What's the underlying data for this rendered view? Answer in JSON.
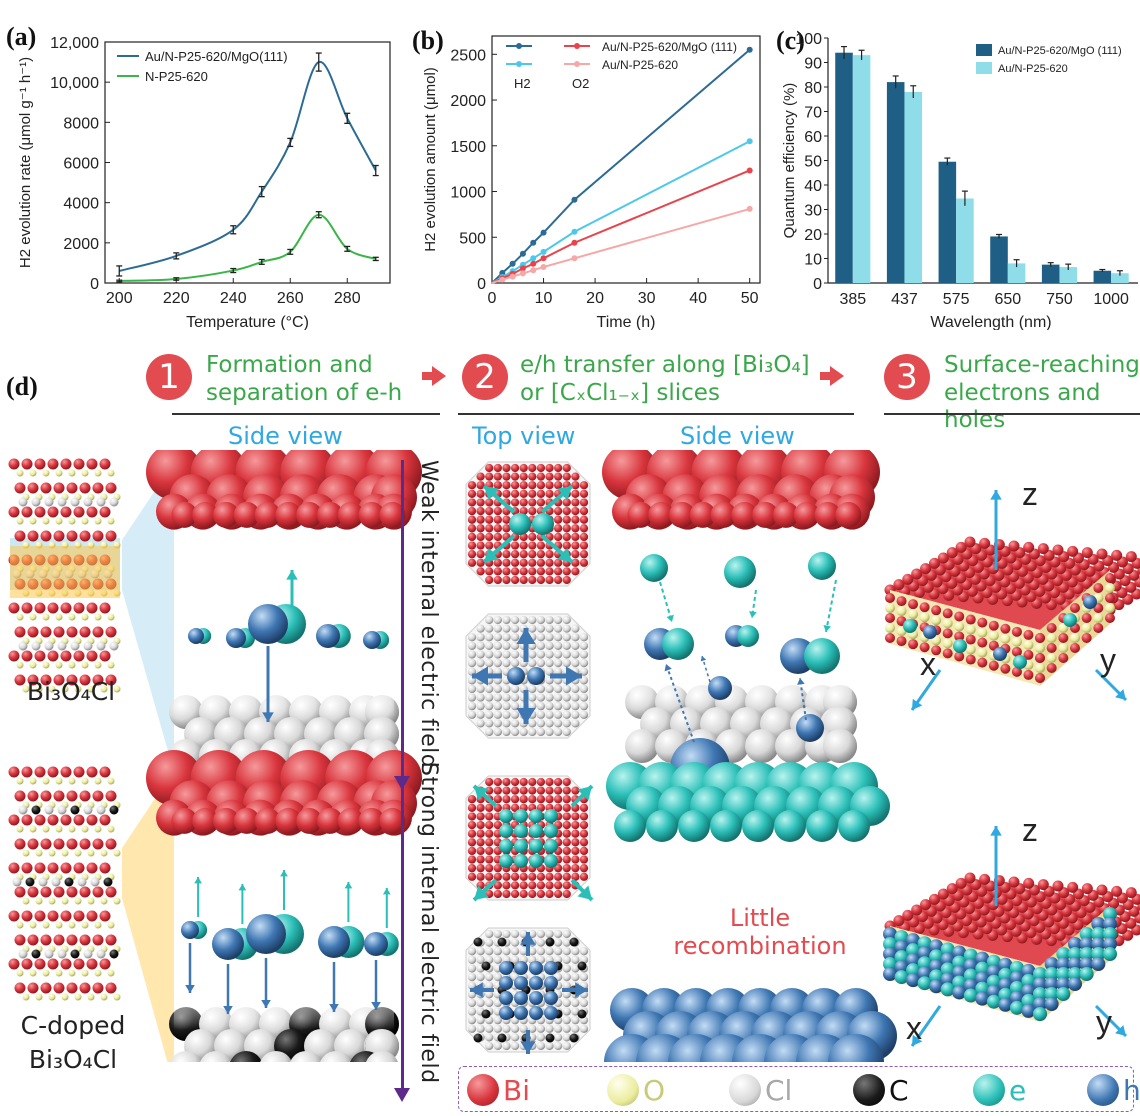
{
  "panel_labels": {
    "a": "(a)",
    "b": "(b)",
    "c": "(c)",
    "d": "(d)"
  },
  "colors": {
    "au_blue": "#2b6b94",
    "green": "#3bb54a",
    "h2_light": "#4cc8ea",
    "o2_dark": "#e8444b",
    "o2_light": "#f6a7a7",
    "bar_dark": "#1f5f85",
    "bar_light": "#8edde8",
    "bi": "#d9353d",
    "o": "#ecec9e",
    "cl": "#d8d8d8",
    "c": "#111111",
    "e": "#2bbfb8",
    "h": "#3f77b3",
    "step_red": "#e24b4f",
    "step_green": "#3aa84a",
    "view_blue": "#30a8e0"
  },
  "chart_data": [
    {
      "id": "a",
      "type": "line",
      "xlabel": "Temperature (°C)",
      "ylabel": "H2 evolution rate (μmol g⁻¹ h⁻¹)",
      "xlim": [
        195,
        295
      ],
      "ylim": [
        0,
        12000
      ],
      "xticks": [
        200,
        220,
        240,
        260,
        280
      ],
      "yticks": [
        0,
        2000,
        4000,
        6000,
        8000,
        10000,
        12000
      ],
      "ytick_labels": [
        "0",
        "2000",
        "4000",
        "6000",
        "8000",
        "10,000",
        "12,000"
      ],
      "legend_position": "top-left",
      "series": [
        {
          "name": "Au/N-P25-620/MgO(111)",
          "x": [
            200,
            220,
            240,
            250,
            260,
            270,
            280,
            290
          ],
          "y": [
            600,
            1350,
            2650,
            4550,
            7000,
            11000,
            8200,
            5600
          ],
          "err": [
            250,
            150,
            200,
            250,
            200,
            450,
            250,
            250
          ]
        },
        {
          "name": "N-P25-620",
          "x": [
            200,
            220,
            240,
            250,
            260,
            270,
            280,
            290
          ],
          "y": [
            100,
            200,
            620,
            1050,
            1550,
            3400,
            1700,
            1200
          ],
          "err": [
            40,
            60,
            100,
            120,
            120,
            150,
            120,
            80
          ]
        }
      ]
    },
    {
      "id": "b",
      "type": "line",
      "xlabel": "Time (h)",
      "ylabel": "H2 evolution amount (μmol)",
      "xlim": [
        0,
        52
      ],
      "ylim": [
        0,
        2700
      ],
      "xticks": [
        0,
        10,
        20,
        30,
        40,
        50
      ],
      "yticks": [
        0,
        500,
        1000,
        1500,
        2000,
        2500
      ],
      "legend_position": "top-left",
      "legend_rows": [
        "Au/N-P25-620/MgO (111)",
        "Au/N-P25-620"
      ],
      "legend_cols": [
        "H2",
        "O2"
      ],
      "series": [
        {
          "name": "Au/N-P25-620/MgO (111) H2",
          "x": [
            0,
            2,
            4,
            6,
            8,
            10,
            16,
            50
          ],
          "y": [
            0,
            110,
            210,
            320,
            440,
            550,
            910,
            2550
          ]
        },
        {
          "name": "Au/N-P25-620 H2",
          "x": [
            0,
            2,
            4,
            6,
            8,
            10,
            16,
            50
          ],
          "y": [
            0,
            65,
            130,
            200,
            270,
            340,
            560,
            1550
          ]
        },
        {
          "name": "Au/N-P25-620/MgO (111) O2",
          "x": [
            0,
            2,
            4,
            6,
            8,
            10,
            16,
            50
          ],
          "y": [
            0,
            50,
            100,
            160,
            210,
            270,
            440,
            1230
          ]
        },
        {
          "name": "Au/N-P25-620 O2",
          "x": [
            0,
            2,
            4,
            6,
            8,
            10,
            16,
            50
          ],
          "y": [
            0,
            35,
            70,
            105,
            140,
            175,
            270,
            810
          ]
        }
      ]
    },
    {
      "id": "c",
      "type": "bar",
      "xlabel": "Wavelength (nm)",
      "ylabel": "Quantum efficiency (%)",
      "ylim": [
        0,
        100
      ],
      "yticks": [
        0,
        10,
        20,
        30,
        40,
        50,
        60,
        70,
        80,
        90,
        100
      ],
      "categories": [
        "385",
        "437",
        "575",
        "650",
        "750",
        "1000"
      ],
      "legend_position": "top-right",
      "series": [
        {
          "name": "Au/N-P25-620/MgO (111)",
          "values": [
            94,
            82,
            49.5,
            19,
            7.5,
            5
          ],
          "err": [
            2.5,
            2.5,
            1.5,
            0.8,
            0.8,
            0.5
          ]
        },
        {
          "name": "Au/N-P25-620",
          "values": [
            93,
            78,
            34.5,
            8,
            6.5,
            4
          ],
          "err": [
            2,
            2.5,
            3,
            1.5,
            1.2,
            1
          ]
        }
      ]
    }
  ],
  "schematic": {
    "steps": [
      {
        "num": "1",
        "line1": "Formation and",
        "line2": "separation of e-h"
      },
      {
        "num": "2",
        "line1": "e/h transfer along [Bi₃O₄]",
        "line2": "or [CₓCl₁₋ₓ] slices"
      },
      {
        "num": "3",
        "line1": "Surface-reaching",
        "line2": "electrons and holes"
      }
    ],
    "views": {
      "side1": "Side view",
      "top": "Top view",
      "side2": "Side view"
    },
    "field_weak": "Weak internal electric field",
    "field_strong": "Strong internal electric field",
    "material_top": "Bi₃O₄Cl",
    "material_bottom_1": "C-doped",
    "material_bottom_2": "Bi₃O₄Cl",
    "little_recombination_1": "Little",
    "little_recombination_2": "recombination",
    "axes": {
      "x": "x",
      "y": "y",
      "z": "z"
    },
    "legend": [
      {
        "symbol": "Bi",
        "color": "#d9353d",
        "text_color": "#e24b4f"
      },
      {
        "symbol": "O",
        "color": "#ecec9e",
        "text_color": "#c9c97a"
      },
      {
        "symbol": "Cl",
        "color": "#d8d8d8",
        "text_color": "#a8a8a8"
      },
      {
        "symbol": "C",
        "color": "#111111",
        "text_color": "#111111"
      },
      {
        "symbol": "e",
        "color": "#2bbfb8",
        "text_color": "#2bbfb8"
      },
      {
        "symbol": "h",
        "color": "#3f77b3",
        "text_color": "#3f77b3"
      }
    ]
  }
}
